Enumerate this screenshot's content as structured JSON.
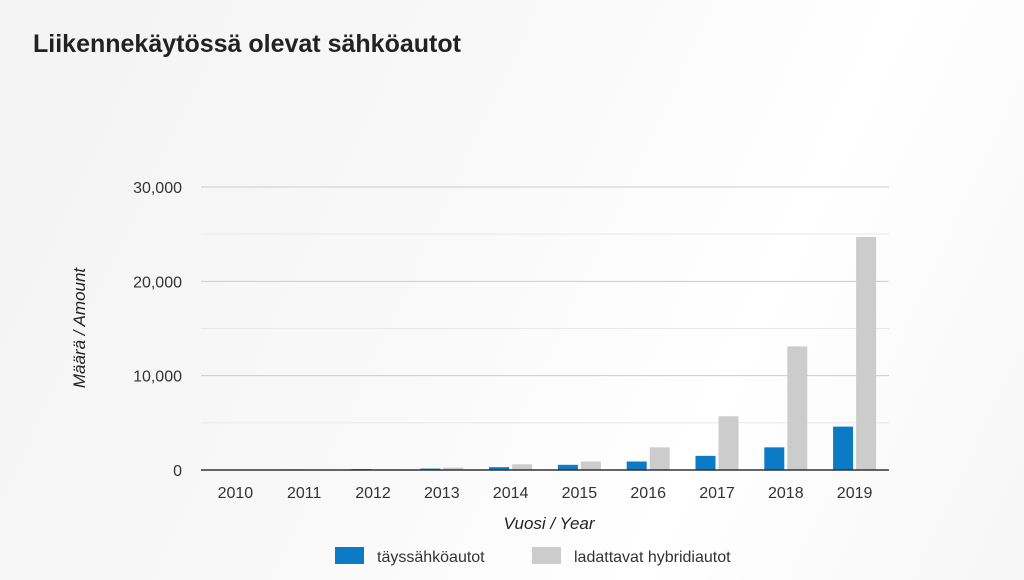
{
  "title": "Liikennekäytössä olevat sähköautot",
  "colors": {
    "series_0": "#0a7bc4",
    "series_1": "#cccccc",
    "grid_major": "#cccccc",
    "grid_minor": "#e8e8e8",
    "axis": "#333333"
  },
  "chart_data": {
    "type": "bar",
    "title": "Liikennekäytössä olevat sähköautot",
    "xlabel": "Vuosi / Year",
    "ylabel": "Määrä / Amount",
    "categories": [
      "2010",
      "2011",
      "2012",
      "2013",
      "2014",
      "2015",
      "2016",
      "2017",
      "2018",
      "2019"
    ],
    "series": [
      {
        "name": "täyssähköautot",
        "values": [
          30,
          60,
          100,
          150,
          300,
          550,
          900,
          1500,
          2400,
          4600
        ]
      },
      {
        "name": "ladattavat hybridiautot",
        "values": [
          0,
          20,
          60,
          250,
          600,
          900,
          2400,
          5700,
          13100,
          24700
        ]
      }
    ],
    "ylim": [
      0,
      30000
    ],
    "yticks": [
      0,
      10000,
      20000,
      30000
    ],
    "ytick_labels": [
      "0",
      "10,000",
      "20,000",
      "30,000"
    ],
    "grid": true,
    "legend_position": "bottom"
  }
}
